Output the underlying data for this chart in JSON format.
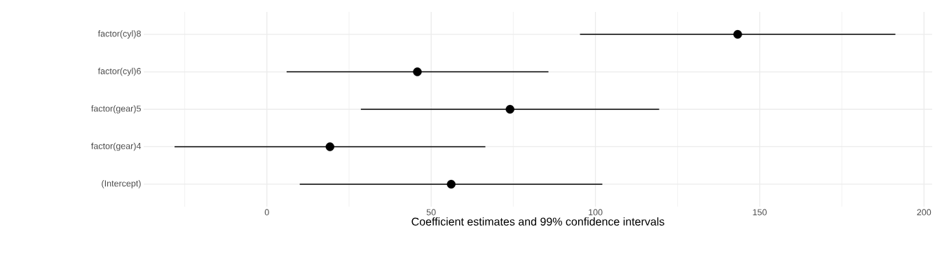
{
  "chart_data": {
    "type": "scatter",
    "orientation": "horizontal",
    "xlabel": "Coefficient estimates and 99% confidence intervals",
    "categories": [
      "factor(cyl)8",
      "factor(cyl)6",
      "factor(gear)5",
      "factor(gear)4",
      "(Intercept)"
    ],
    "values": [
      143.3,
      45.8,
      74.0,
      19.2,
      56.1
    ],
    "errors": [
      [
        95.3,
        191.3
      ],
      [
        6.0,
        85.7
      ],
      [
        28.6,
        119.4
      ],
      [
        -28.1,
        66.5
      ],
      [
        10.0,
        102.1
      ]
    ],
    "color": "#000000",
    "marker": "circle",
    "grid": true,
    "xlim": [
      -37.5,
      202.5
    ],
    "xticks": [
      {
        "value": -25,
        "label": null
      },
      0,
      {
        "value": 25,
        "label": null
      },
      50,
      {
        "value": 75,
        "label": null
      },
      100,
      {
        "value": 125,
        "label": null
      },
      150,
      {
        "value": 175,
        "label": null
      },
      200
    ]
  }
}
